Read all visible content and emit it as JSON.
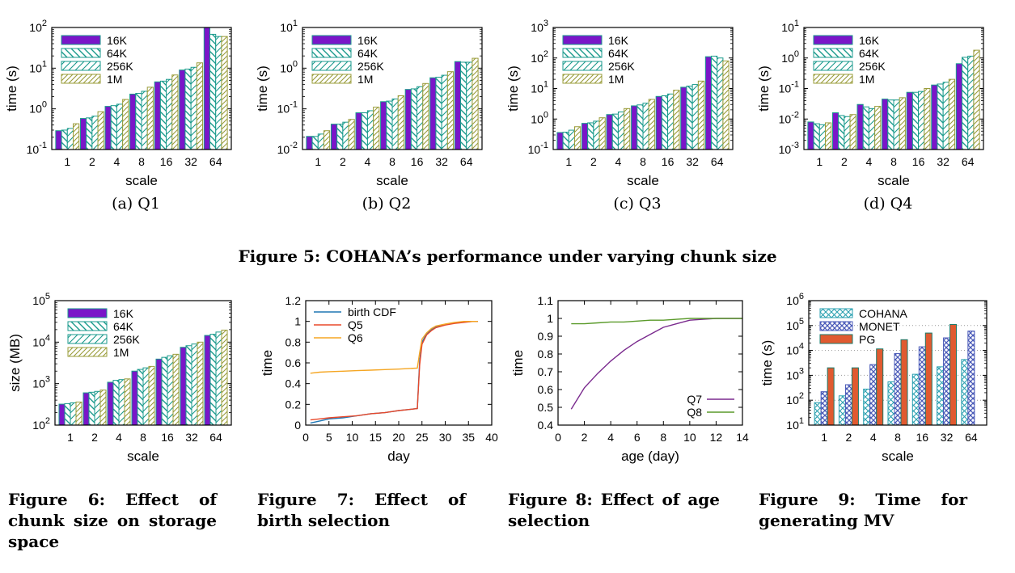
{
  "figure5": {
    "caption": "Figure 5: COHANA’s performance under varying chunk size",
    "subcaptions": [
      "(a) Q1",
      "(b) Q2",
      "(c) Q3",
      "(d) Q4"
    ]
  },
  "figure_captions": {
    "fig6": "Figure 6: Effect of chunk size on storage space",
    "fig7": "Figure 7: Effect of birth selection",
    "fig8": "Figure 8: Effect of age selection",
    "fig9": "Figure 9: Time for generating MV"
  },
  "colors": {
    "purple": "#7a16c8",
    "teal": "#1a9a8c",
    "olive": "#9a9c3a",
    "blue": "#1f77b4",
    "red": "#e8482a",
    "orange": "#f5a623",
    "violet": "#7a2a8e",
    "green": "#5a9a2a",
    "cohana": "#2aa0b0",
    "monet": "#4a5ab8",
    "pg": "#e05a30"
  },
  "chart_data": [
    {
      "id": "q1",
      "type": "bar",
      "title": "",
      "xlabel": "scale",
      "ylabel": "time (s)",
      "yscale": "log",
      "ylim": [
        0.1,
        100
      ],
      "ytick_labels": [
        "10-1",
        "100",
        "101",
        "102"
      ],
      "categories": [
        "1",
        "2",
        "4",
        "8",
        "16",
        "32",
        "64"
      ],
      "legend": "top-left",
      "series": [
        {
          "name": "16K",
          "values": [
            0.29,
            0.58,
            1.15,
            2.3,
            4.6,
            9.0,
            100
          ]
        },
        {
          "name": "64K",
          "values": [
            0.3,
            0.6,
            1.2,
            2.4,
            4.8,
            9.5,
            68
          ]
        },
        {
          "name": "256K",
          "values": [
            0.33,
            0.66,
            1.3,
            2.7,
            5.3,
            10.5,
            60
          ]
        },
        {
          "name": "1M",
          "values": [
            0.43,
            0.85,
            1.7,
            3.4,
            6.8,
            13.5,
            60
          ]
        }
      ]
    },
    {
      "id": "q2",
      "type": "bar",
      "title": "",
      "xlabel": "scale",
      "ylabel": "time (s)",
      "yscale": "log",
      "ylim": [
        0.01,
        10
      ],
      "ytick_labels": [
        "10-2",
        "10-1",
        "100",
        "101"
      ],
      "categories": [
        "1",
        "2",
        "4",
        "8",
        "16",
        "32",
        "64"
      ],
      "legend": "top-left",
      "series": [
        {
          "name": "16K",
          "values": [
            0.021,
            0.042,
            0.08,
            0.15,
            0.3,
            0.58,
            1.45
          ]
        },
        {
          "name": "64K",
          "values": [
            0.021,
            0.042,
            0.08,
            0.155,
            0.31,
            0.6,
            1.4
          ]
        },
        {
          "name": "256K",
          "values": [
            0.024,
            0.047,
            0.09,
            0.175,
            0.35,
            0.67,
            1.4
          ]
        },
        {
          "name": "1M",
          "values": [
            0.029,
            0.055,
            0.11,
            0.21,
            0.42,
            0.82,
            1.75
          ]
        }
      ]
    },
    {
      "id": "q3",
      "type": "bar",
      "title": "",
      "xlabel": "scale",
      "ylabel": "time (s)",
      "yscale": "log",
      "ylim": [
        0.1,
        1000
      ],
      "ytick_labels": [
        "10-1",
        "100",
        "101",
        "102",
        "103"
      ],
      "categories": [
        "1",
        "2",
        "4",
        "8",
        "16",
        "32",
        "64"
      ],
      "legend": "top-left",
      "series": [
        {
          "name": "16K",
          "values": [
            0.36,
            0.72,
            1.4,
            2.7,
            5.5,
            11,
            110
          ]
        },
        {
          "name": "64K",
          "values": [
            0.37,
            0.75,
            1.45,
            2.9,
            5.8,
            12,
            115
          ]
        },
        {
          "name": "256K",
          "values": [
            0.43,
            0.85,
            1.7,
            3.3,
            6.6,
            13.5,
            100
          ]
        },
        {
          "name": "1M",
          "values": [
            0.56,
            1.1,
            2.2,
            4.4,
            8.8,
            17.5,
            80
          ]
        }
      ]
    },
    {
      "id": "q4",
      "type": "bar",
      "title": "",
      "xlabel": "scale",
      "ylabel": "time (s)",
      "yscale": "log",
      "ylim": [
        0.001,
        10
      ],
      "ytick_labels": [
        "10-3",
        "10-2",
        "10-1",
        "100",
        "101"
      ],
      "categories": [
        "1",
        "2",
        "4",
        "8",
        "16",
        "32",
        "64"
      ],
      "legend": "top-left",
      "series": [
        {
          "name": "16K",
          "values": [
            0.008,
            0.016,
            0.03,
            0.045,
            0.075,
            0.13,
            0.65
          ]
        },
        {
          "name": "64K",
          "values": [
            0.007,
            0.013,
            0.025,
            0.042,
            0.075,
            0.14,
            1.05
          ]
        },
        {
          "name": "256K",
          "values": [
            0.0065,
            0.012,
            0.022,
            0.042,
            0.08,
            0.16,
            1.15
          ]
        },
        {
          "name": "1M",
          "values": [
            0.0075,
            0.014,
            0.026,
            0.05,
            0.1,
            0.2,
            1.8
          ]
        }
      ]
    },
    {
      "id": "fig6",
      "type": "bar",
      "title": "",
      "xlabel": "scale",
      "ylabel": "size (MB)",
      "yscale": "log",
      "ylim": [
        100,
        100000
      ],
      "ytick_labels": [
        "102",
        "103",
        "104",
        "105"
      ],
      "categories": [
        "1",
        "2",
        "4",
        "8",
        "16",
        "32",
        "64"
      ],
      "legend": "top-left",
      "series": [
        {
          "name": "16K",
          "values": [
            320,
            600,
            1080,
            2000,
            3900,
            7500,
            14500
          ]
        },
        {
          "name": "64K",
          "values": [
            330,
            620,
            1200,
            2200,
            4300,
            8200,
            15500
          ]
        },
        {
          "name": "256K",
          "values": [
            345,
            650,
            1250,
            2400,
            4700,
            9000,
            17500
          ]
        },
        {
          "name": "1M",
          "values": [
            360,
            700,
            1300,
            2600,
            5100,
            10000,
            19500
          ]
        }
      ]
    },
    {
      "id": "fig7",
      "type": "line",
      "title": "",
      "xlabel": "day",
      "ylabel": "time",
      "xlim": [
        0,
        40
      ],
      "ylim": [
        0,
        1.2
      ],
      "xticks": [
        0,
        5,
        10,
        15,
        20,
        25,
        30,
        35,
        40
      ],
      "yticks": [
        0,
        0.2,
        0.4,
        0.6,
        0.8,
        1,
        1.2
      ],
      "legend": "top-left",
      "series": [
        {
          "name": "birth CDF",
          "x": [
            1,
            3,
            5,
            8,
            11,
            14,
            17,
            20,
            22,
            24,
            24.5,
            25,
            26,
            27,
            28,
            30,
            32,
            34,
            36,
            37
          ],
          "y": [
            0.02,
            0.04,
            0.06,
            0.07,
            0.09,
            0.11,
            0.12,
            0.14,
            0.15,
            0.16,
            0.62,
            0.8,
            0.88,
            0.92,
            0.95,
            0.97,
            0.985,
            0.995,
            1,
            1
          ]
        },
        {
          "name": "Q5",
          "x": [
            1,
            3,
            5,
            8,
            11,
            14,
            17,
            20,
            22,
            24,
            24.5,
            25,
            26,
            27,
            28,
            30,
            32,
            34,
            36,
            37
          ],
          "y": [
            0.05,
            0.06,
            0.07,
            0.08,
            0.09,
            0.11,
            0.12,
            0.14,
            0.15,
            0.16,
            0.58,
            0.78,
            0.87,
            0.91,
            0.94,
            0.965,
            0.98,
            0.99,
            1,
            1
          ]
        },
        {
          "name": "Q6",
          "x": [
            1,
            3,
            5,
            8,
            11,
            14,
            17,
            20,
            22,
            24,
            24.5,
            25,
            26,
            27,
            28,
            30,
            32,
            34,
            36,
            37
          ],
          "y": [
            0.5,
            0.51,
            0.515,
            0.52,
            0.525,
            0.53,
            0.535,
            0.54,
            0.545,
            0.55,
            0.7,
            0.83,
            0.89,
            0.93,
            0.955,
            0.975,
            0.99,
            1,
            1,
            1
          ]
        }
      ]
    },
    {
      "id": "fig8",
      "type": "line",
      "title": "",
      "xlabel": "age (day)",
      "ylabel": "time",
      "xlim": [
        0,
        14
      ],
      "ylim": [
        0.4,
        1.1
      ],
      "xticks": [
        0,
        2,
        4,
        6,
        8,
        10,
        12,
        14
      ],
      "yticks": [
        0.4,
        0.5,
        0.6,
        0.7,
        0.8,
        0.9,
        1,
        1.1
      ],
      "legend": "bottom-right",
      "series": [
        {
          "name": "Q7",
          "x": [
            1,
            2,
            3,
            4,
            5,
            6,
            7,
            8,
            9,
            10,
            11,
            12,
            13,
            14
          ],
          "y": [
            0.49,
            0.61,
            0.69,
            0.76,
            0.82,
            0.87,
            0.91,
            0.95,
            0.97,
            0.99,
            0.995,
            1,
            1,
            1
          ]
        },
        {
          "name": "Q8",
          "x": [
            1,
            2,
            3,
            4,
            5,
            6,
            7,
            8,
            9,
            10,
            11,
            12,
            13,
            14
          ],
          "y": [
            0.97,
            0.97,
            0.975,
            0.98,
            0.98,
            0.985,
            0.99,
            0.99,
            0.995,
            1,
            1,
            1,
            1,
            1
          ]
        }
      ]
    },
    {
      "id": "fig9",
      "type": "bar",
      "title": "",
      "xlabel": "scale",
      "ylabel": "time (s)",
      "yscale": "log",
      "ylim": [
        10,
        1000000
      ],
      "grid": true,
      "ytick_labels": [
        "101",
        "102",
        "103",
        "104",
        "105",
        "106"
      ],
      "categories": [
        "1",
        "2",
        "4",
        "8",
        "16",
        "32",
        "64"
      ],
      "legend": "top-left",
      "series": [
        {
          "name": "COHANA",
          "values": [
            80,
            150,
            280,
            550,
            1100,
            2200,
            4300
          ]
        },
        {
          "name": "MONET",
          "values": [
            220,
            420,
            2700,
            7500,
            14000,
            32000,
            60000
          ]
        },
        {
          "name": "PG",
          "values": [
            2000,
            2000,
            11500,
            27000,
            50000,
            110000,
            null
          ]
        }
      ]
    }
  ]
}
